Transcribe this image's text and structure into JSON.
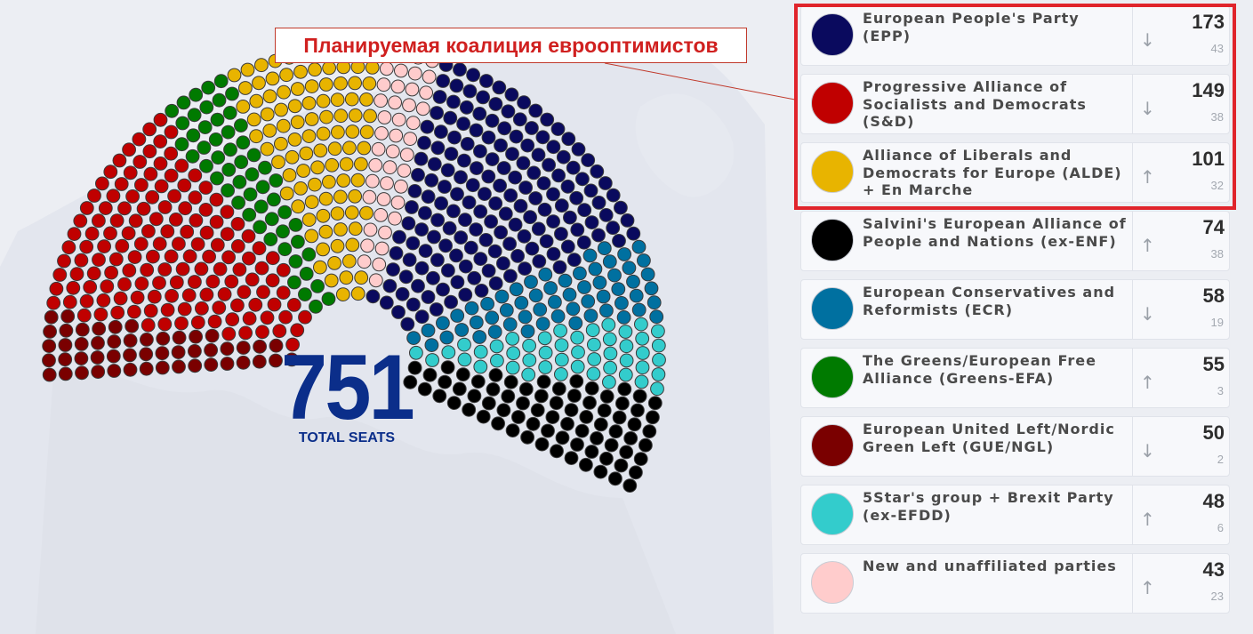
{
  "callout": {
    "text": "Планируемая коалиция еврооптимистов"
  },
  "total": {
    "number": "751",
    "label": "TOTAL SEATS"
  },
  "chart_data": {
    "type": "hemicycle",
    "total_seats": 751,
    "order_left_to_right": [
      "GUE/NGL",
      "S&D",
      "Greens-EFA",
      "ALDE",
      "NI",
      "EPP",
      "ECR",
      "EFDD",
      "ENF"
    ],
    "parties": [
      {
        "id": "EPP",
        "name": "European People's Party (EPP)",
        "seats": 173,
        "change": 43,
        "trend": "down",
        "color": "#0a0a5e"
      },
      {
        "id": "S&D",
        "name": "Progressive Alliance of Socialists and Democrats (S&D)",
        "seats": 149,
        "change": 38,
        "trend": "down",
        "color": "#c00000"
      },
      {
        "id": "ALDE",
        "name": "Alliance of Liberals and Democrats for Europe (ALDE) + En Marche",
        "seats": 101,
        "change": 32,
        "trend": "up",
        "color": "#e8b400"
      },
      {
        "id": "ENF",
        "name": "Salvini's European Alliance of People and Nations (ex-ENF)",
        "seats": 74,
        "change": 38,
        "trend": "up",
        "color": "#000000"
      },
      {
        "id": "ECR",
        "name": "European Conservatives and Reformists (ECR)",
        "seats": 58,
        "change": 19,
        "trend": "down",
        "color": "#0070a0"
      },
      {
        "id": "Greens-EFA",
        "name": "The Greens/European Free Alliance (Greens-EFA)",
        "seats": 55,
        "change": 3,
        "trend": "up",
        "color": "#007a00"
      },
      {
        "id": "GUE/NGL",
        "name": "European United Left/Nordic Green Left (GUE/NGL)",
        "seats": 50,
        "change": 2,
        "trend": "down",
        "color": "#7a0000"
      },
      {
        "id": "EFDD",
        "name": "5Star's group + Brexit Party (ex-EFDD)",
        "seats": 48,
        "change": 6,
        "trend": "up",
        "color": "#33cccc"
      },
      {
        "id": "NI",
        "name": "New and unaffiliated parties",
        "seats": 43,
        "change": 23,
        "trend": "up",
        "color": "#ffcccc"
      }
    ],
    "highlighted_coalition": [
      "EPP",
      "S&D",
      "ALDE"
    ]
  },
  "arrows": {
    "up": "↑",
    "down": "↓"
  }
}
